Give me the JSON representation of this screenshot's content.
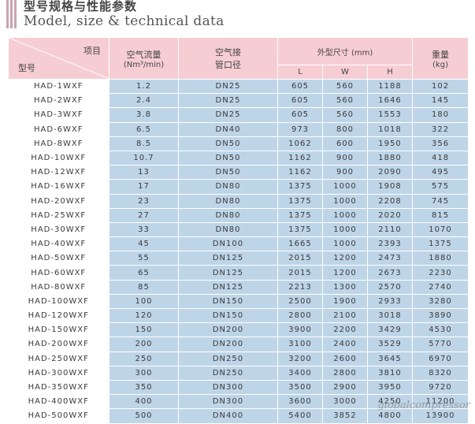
{
  "header": {
    "title_cn": "型号规格与性能参数",
    "title_en": "Model, size & technical data"
  },
  "table": {
    "corner_top": "项目",
    "corner_bottom": "型号",
    "col_flow": "空气流量",
    "col_flow_unit": "(Nm³/min)",
    "col_dn_1": "空气接",
    "col_dn_2": "管口径",
    "col_dims": "外型尺寸 (mm)",
    "col_L": "L",
    "col_W": "W",
    "col_H": "H",
    "col_weight": "重量",
    "col_weight_unit": "(kg)",
    "rows": [
      {
        "model": "HAD-1WXF",
        "flow": "1.2",
        "dn": "DN25",
        "L": "605",
        "W": "560",
        "H": "1188",
        "kg": "102"
      },
      {
        "model": "HAD-2WXF",
        "flow": "2.4",
        "dn": "DN25",
        "L": "605",
        "W": "560",
        "H": "1646",
        "kg": "145"
      },
      {
        "model": "HAD-3WXF",
        "flow": "3.8",
        "dn": "DN25",
        "L": "605",
        "W": "560",
        "H": "1553",
        "kg": "180"
      },
      {
        "model": "HAD-6WXF",
        "flow": "6.5",
        "dn": "DN40",
        "L": "973",
        "W": "800",
        "H": "1018",
        "kg": "322"
      },
      {
        "model": "HAD-8WXF",
        "flow": "8.5",
        "dn": "DN50",
        "L": "1062",
        "W": "600",
        "H": "1950",
        "kg": "356"
      },
      {
        "model": "HAD-10WXF",
        "flow": "10.7",
        "dn": "DN50",
        "L": "1162",
        "W": "900",
        "H": "1880",
        "kg": "418"
      },
      {
        "model": "HAD-12WXF",
        "flow": "13",
        "dn": "DN50",
        "L": "1162",
        "W": "900",
        "H": "2090",
        "kg": "495"
      },
      {
        "model": "HAD-16WXF",
        "flow": "17",
        "dn": "DN80",
        "L": "1375",
        "W": "1000",
        "H": "1908",
        "kg": "575"
      },
      {
        "model": "HAD-20WXF",
        "flow": "23",
        "dn": "DN80",
        "L": "1375",
        "W": "1000",
        "H": "2208",
        "kg": "745"
      },
      {
        "model": "HAD-25WXF",
        "flow": "27",
        "dn": "DN80",
        "L": "1375",
        "W": "1000",
        "H": "2020",
        "kg": "815"
      },
      {
        "model": "HAD-30WXF",
        "flow": "33",
        "dn": "DN80",
        "L": "1375",
        "W": "1000",
        "H": "2110",
        "kg": "1070"
      },
      {
        "model": "HAD-40WXF",
        "flow": "45",
        "dn": "DN100",
        "L": "1665",
        "W": "1000",
        "H": "2393",
        "kg": "1375"
      },
      {
        "model": "HAD-50WXF",
        "flow": "55",
        "dn": "DN125",
        "L": "2015",
        "W": "1200",
        "H": "2473",
        "kg": "1880"
      },
      {
        "model": "HAD-60WXF",
        "flow": "65",
        "dn": "DN125",
        "L": "2015",
        "W": "1200",
        "H": "2673",
        "kg": "2230"
      },
      {
        "model": "HAD-80WXF",
        "flow": "85",
        "dn": "DN125",
        "L": "2213",
        "W": "1300",
        "H": "2570",
        "kg": "2740"
      },
      {
        "model": "HAD-100WXF",
        "flow": "100",
        "dn": "DN150",
        "L": "2500",
        "W": "1900",
        "H": "2933",
        "kg": "3280"
      },
      {
        "model": "HAD-120WXF",
        "flow": "120",
        "dn": "DN150",
        "L": "2800",
        "W": "2100",
        "H": "3018",
        "kg": "3890"
      },
      {
        "model": "HAD-150WXF",
        "flow": "150",
        "dn": "DN200",
        "L": "3900",
        "W": "2200",
        "H": "3429",
        "kg": "4530"
      },
      {
        "model": "HAD-200WXF",
        "flow": "200",
        "dn": "DN200",
        "L": "3100",
        "W": "2400",
        "H": "3529",
        "kg": "5770"
      },
      {
        "model": "HAD-250WXF",
        "flow": "250",
        "dn": "DN250",
        "L": "3200",
        "W": "2600",
        "H": "3645",
        "kg": "6970"
      },
      {
        "model": "HAD-300WXF",
        "flow": "300",
        "dn": "DN250",
        "L": "3400",
        "W": "2800",
        "H": "3810",
        "kg": "8320"
      },
      {
        "model": "HAD-350WXF",
        "flow": "350",
        "dn": "DN300",
        "L": "3500",
        "W": "2900",
        "H": "3950",
        "kg": "9720"
      },
      {
        "model": "HAD-400WXF",
        "flow": "400",
        "dn": "DN300",
        "L": "3600",
        "W": "3000",
        "H": "4250",
        "kg": "11200"
      },
      {
        "model": "HAD-500WXF",
        "flow": "500",
        "dn": "DN400",
        "L": "5400",
        "W": "3852",
        "H": "4800",
        "kg": "13900"
      }
    ]
  },
  "watermark": "globalcompressor"
}
